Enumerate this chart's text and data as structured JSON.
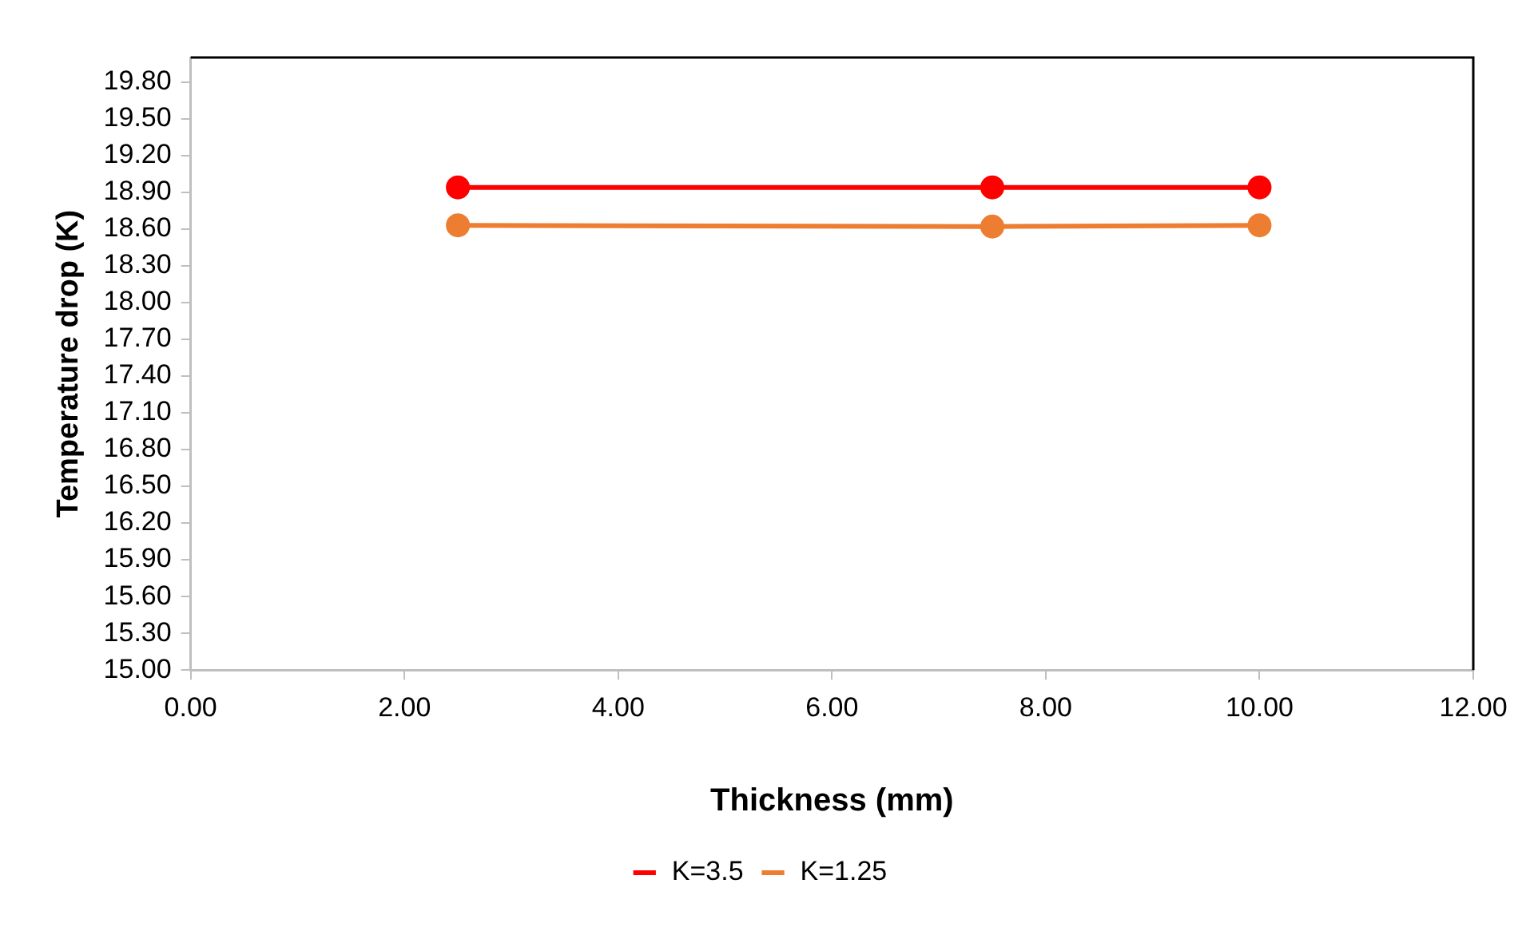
{
  "chart_data": {
    "type": "line",
    "xlabel": "Thickness (mm)",
    "ylabel": "Temperature drop (K)",
    "x": [
      2.5,
      7.5,
      10
    ],
    "series": [
      {
        "name": "K=3.5",
        "color": "#ff0000",
        "values": [
          18.94,
          18.94,
          18.94
        ]
      },
      {
        "name": "K=1.25",
        "color": "#ed7d31",
        "values": [
          18.63,
          18.62,
          18.63
        ]
      }
    ],
    "xlim": [
      0,
      12
    ],
    "xticks": [
      {
        "value": 0,
        "label": "0.00"
      },
      {
        "value": 2,
        "label": "2.00"
      },
      {
        "value": 4,
        "label": "4.00"
      },
      {
        "value": 6,
        "label": "6.00"
      },
      {
        "value": 8,
        "label": "8.00"
      },
      {
        "value": 10,
        "label": "10.00"
      },
      {
        "value": 12,
        "label": "12.00"
      }
    ],
    "ylim": [
      15,
      20
    ],
    "yticks": [
      {
        "value": 15,
        "label": "15.00"
      },
      {
        "value": 15.3,
        "label": "15.30"
      },
      {
        "value": 15.6,
        "label": "15.60"
      },
      {
        "value": 15.9,
        "label": "15.90"
      },
      {
        "value": 16.2,
        "label": "16.20"
      },
      {
        "value": 16.5,
        "label": "16.50"
      },
      {
        "value": 16.8,
        "label": "16.80"
      },
      {
        "value": 17.1,
        "label": "17.10"
      },
      {
        "value": 17.4,
        "label": "17.40"
      },
      {
        "value": 17.7,
        "label": "17.70"
      },
      {
        "value": 18,
        "label": "18.00"
      },
      {
        "value": 18.3,
        "label": "18.30"
      },
      {
        "value": 18.6,
        "label": "18.60"
      },
      {
        "value": 18.9,
        "label": "18.90"
      },
      {
        "value": 19.2,
        "label": "19.20"
      },
      {
        "value": 19.5,
        "label": "19.50"
      },
      {
        "value": 19.8,
        "label": "19.80"
      }
    ],
    "grid": false,
    "legend": "bottom",
    "marker": "circle",
    "line_style": "solid"
  }
}
